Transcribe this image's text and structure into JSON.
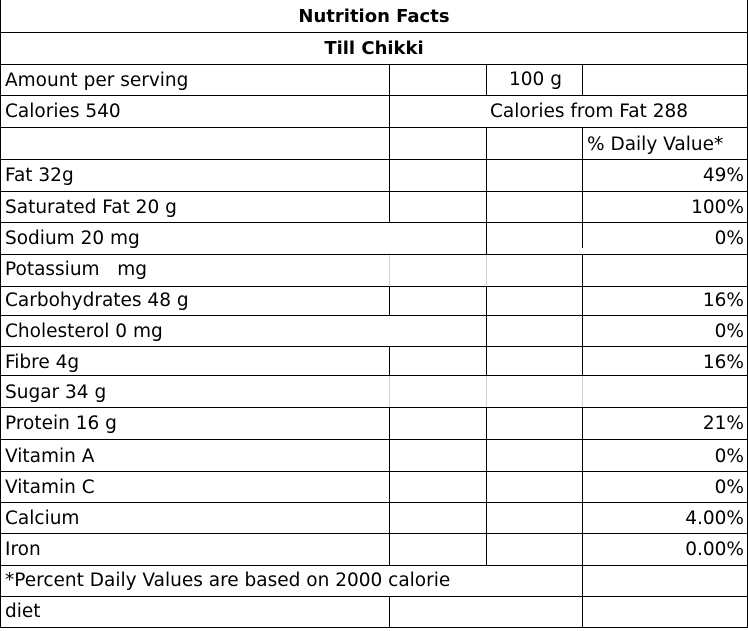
{
  "title": "Nutrition Facts",
  "product": "Till Chikki",
  "serving": {
    "label": "Amount per serving",
    "value": "100 g"
  },
  "calories": {
    "label": "Calories 540",
    "from_fat": "Calories from Fat 288"
  },
  "dv_header": "% Daily Value*",
  "nutrients": [
    {
      "label": "Fat 32g",
      "dv": "49%"
    },
    {
      "label": "Saturated Fat 20 g",
      "dv": "100%"
    },
    {
      "label": "Sodium 20 mg",
      "dv": "0%"
    },
    {
      "label": "Potassium   mg",
      "dv": ""
    },
    {
      "label": "Carbohydrates 48 g",
      "dv": "16%"
    },
    {
      "label": "Cholesterol 0 mg",
      "dv": "0%"
    },
    {
      "label": "Fibre 4g",
      "dv": "16%"
    },
    {
      "label": "Sugar 34 g",
      "dv": ""
    },
    {
      "label": "Protein 16 g",
      "dv": "21%"
    },
    {
      "label": "Vitamin A",
      "dv": "0%"
    },
    {
      "label": "Vitamin C",
      "dv": "0%"
    },
    {
      "label": "Calcium",
      "dv": "4.00%"
    },
    {
      "label": "Iron",
      "dv": "0.00%"
    }
  ],
  "footnote": {
    "line1": "*Percent Daily Values are based on 2000 calorie",
    "line2": "diet"
  }
}
